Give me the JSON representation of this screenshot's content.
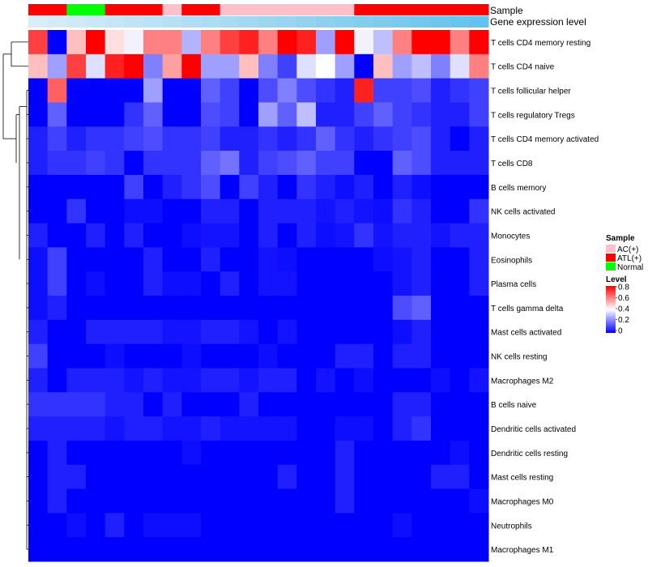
{
  "chart_data": {
    "type": "heatmap",
    "title": "",
    "annotation_labels": {
      "sample": "Sample",
      "expression": "Gene expression level"
    },
    "columns": 24,
    "sample_groups": [
      "ATL(+)",
      "ATL(+)",
      "Normal",
      "Normal",
      "ATL(+)",
      "ATL(+)",
      "ATL(+)",
      "AC(+)",
      "ATL(+)",
      "ATL(+)",
      "AC(+)",
      "AC(+)",
      "AC(+)",
      "AC(+)",
      "AC(+)",
      "AC(+)",
      "AC(+)",
      "ATL(+)",
      "ATL(+)",
      "ATL(+)",
      "ATL(+)",
      "ATL(+)",
      "ATL(+)",
      "ATL(+)"
    ],
    "expression_level": [
      0.02,
      0.06,
      0.1,
      0.14,
      0.18,
      0.22,
      0.26,
      0.3,
      0.34,
      0.38,
      0.42,
      0.46,
      0.5,
      0.54,
      0.58,
      0.62,
      0.66,
      0.7,
      0.74,
      0.78,
      0.82,
      0.86,
      0.9,
      0.94
    ],
    "rows": [
      "T cells CD4 memory resting",
      "T cells CD4 naive",
      "T cells follicular helper",
      "T cells regulatory  Tregs",
      "T cells CD4 memory activated",
      "T cells CD8",
      "B cells memory",
      "NK cells activated",
      "Monocytes",
      "Eosinophils",
      "Plasma cells",
      "T cells gamma delta",
      "Mast cells activated",
      "NK cells resting",
      "Macrophages M2",
      "B cells naive",
      "Dendritic cells activated",
      "Dendritic cells resting",
      "Mast cells resting",
      "Macrophages M0",
      "Neutrophils",
      "Macrophages M1"
    ],
    "values": [
      [
        0.7,
        0.0,
        0.5,
        0.85,
        0.45,
        0.38,
        0.6,
        0.6,
        0.28,
        0.6,
        0.7,
        0.75,
        0.6,
        0.85,
        0.75,
        0.25,
        0.85,
        0.38,
        0.3,
        0.6,
        0.85,
        0.9,
        0.6,
        0.85
      ],
      [
        0.5,
        0.25,
        0.7,
        0.35,
        0.75,
        0.85,
        0.2,
        0.55,
        0.85,
        0.25,
        0.25,
        0.5,
        0.2,
        0.1,
        0.35,
        0.4,
        0.25,
        0.0,
        0.5,
        0.25,
        0.3,
        0.2,
        0.35,
        0.6
      ],
      [
        0.0,
        0.65,
        0.0,
        0.0,
        0.0,
        0.0,
        0.25,
        0.0,
        0.0,
        0.15,
        0.1,
        0.0,
        0.12,
        0.2,
        0.12,
        0.08,
        0.05,
        0.75,
        0.1,
        0.1,
        0.12,
        0.05,
        0.08,
        0.1
      ],
      [
        0.0,
        0.15,
        0.0,
        0.0,
        0.0,
        0.08,
        0.15,
        0.0,
        0.0,
        0.12,
        0.1,
        0.0,
        0.25,
        0.15,
        0.3,
        0.05,
        0.05,
        0.1,
        0.15,
        0.1,
        0.08,
        0.05,
        0.05,
        0.1
      ],
      [
        0.05,
        0.1,
        0.05,
        0.08,
        0.08,
        0.1,
        0.12,
        0.08,
        0.08,
        0.1,
        0.05,
        0.05,
        0.08,
        0.05,
        0.08,
        0.15,
        0.08,
        0.05,
        0.08,
        0.1,
        0.12,
        0.05,
        0.0,
        0.05
      ],
      [
        0.05,
        0.08,
        0.08,
        0.1,
        0.08,
        0.0,
        0.08,
        0.08,
        0.08,
        0.15,
        0.18,
        0.05,
        0.1,
        0.12,
        0.15,
        0.1,
        0.1,
        0.0,
        0.0,
        0.15,
        0.12,
        0.05,
        0.05,
        0.05
      ],
      [
        0.0,
        0.0,
        0.0,
        0.0,
        0.0,
        0.1,
        0.0,
        0.05,
        0.08,
        0.12,
        0.0,
        0.1,
        0.05,
        0.0,
        0.08,
        0.05,
        0.02,
        0.05,
        0.0,
        0.05,
        0.02,
        0.0,
        0.0,
        0.0
      ],
      [
        0.0,
        0.0,
        0.08,
        0.0,
        0.0,
        0.02,
        0.02,
        0.0,
        0.0,
        0.05,
        0.05,
        0.0,
        0.05,
        0.05,
        0.05,
        0.03,
        0.05,
        0.03,
        0.02,
        0.08,
        0.05,
        0.0,
        0.0,
        0.08
      ],
      [
        0.05,
        0.0,
        0.0,
        0.05,
        0.0,
        0.05,
        0.0,
        0.0,
        0.02,
        0.03,
        0.03,
        0.0,
        0.05,
        0.0,
        0.05,
        0.02,
        0.03,
        0.08,
        0.03,
        0.05,
        0.05,
        0.03,
        0.05,
        0.05
      ],
      [
        0.02,
        0.1,
        0.0,
        0.0,
        0.0,
        0.0,
        0.05,
        0.0,
        0.0,
        0.05,
        0.0,
        0.0,
        0.03,
        0.02,
        0.0,
        0.0,
        0.0,
        0.0,
        0.02,
        0.03,
        0.05,
        0.0,
        0.0,
        0.05
      ],
      [
        0.02,
        0.1,
        0.0,
        0.02,
        0.0,
        0.0,
        0.05,
        0.02,
        0.02,
        0.0,
        0.05,
        0.0,
        0.03,
        0.03,
        0.0,
        0.0,
        0.0,
        0.0,
        0.0,
        0.03,
        0.05,
        0.0,
        0.0,
        0.05
      ],
      [
        0.02,
        0.05,
        0.0,
        0.0,
        0.0,
        0.0,
        0.0,
        0.0,
        0.0,
        0.0,
        0.0,
        0.0,
        0.0,
        0.0,
        0.0,
        0.0,
        0.0,
        0.0,
        0.0,
        0.12,
        0.15,
        0.0,
        0.0,
        0.0
      ],
      [
        0.05,
        0.0,
        0.0,
        0.05,
        0.05,
        0.05,
        0.05,
        0.03,
        0.03,
        0.05,
        0.05,
        0.03,
        0.0,
        0.03,
        0.0,
        0.0,
        0.0,
        0.0,
        0.0,
        0.02,
        0.05,
        0.0,
        0.0,
        0.0
      ],
      [
        0.1,
        0.0,
        0.0,
        0.0,
        0.02,
        0.0,
        0.0,
        0.0,
        0.02,
        0.0,
        0.0,
        0.0,
        0.02,
        0.0,
        0.0,
        0.0,
        0.05,
        0.05,
        0.0,
        0.05,
        0.05,
        0.0,
        0.0,
        0.0
      ],
      [
        0.05,
        0.0,
        0.05,
        0.05,
        0.05,
        0.03,
        0.05,
        0.03,
        0.03,
        0.05,
        0.05,
        0.03,
        0.05,
        0.05,
        0.0,
        0.03,
        0.0,
        0.02,
        0.0,
        0.0,
        0.0,
        0.02,
        0.0,
        0.03
      ],
      [
        0.08,
        0.08,
        0.08,
        0.08,
        0.05,
        0.05,
        0.0,
        0.05,
        0.0,
        0.0,
        0.0,
        0.05,
        0.0,
        0.0,
        0.0,
        0.0,
        0.0,
        0.0,
        0.0,
        0.05,
        0.05,
        0.0,
        0.0,
        0.0
      ],
      [
        0.05,
        0.05,
        0.05,
        0.05,
        0.03,
        0.05,
        0.05,
        0.03,
        0.03,
        0.05,
        0.03,
        0.03,
        0.03,
        0.03,
        0.0,
        0.0,
        0.02,
        0.02,
        0.0,
        0.05,
        0.08,
        0.0,
        0.0,
        0.0
      ],
      [
        0.0,
        0.05,
        0.0,
        0.0,
        0.0,
        0.0,
        0.0,
        0.0,
        0.02,
        0.0,
        0.0,
        0.0,
        0.0,
        0.0,
        0.0,
        0.0,
        0.05,
        0.0,
        0.0,
        0.0,
        0.0,
        0.0,
        0.02,
        0.0
      ],
      [
        0.0,
        0.05,
        0.05,
        0.0,
        0.0,
        0.0,
        0.0,
        0.0,
        0.0,
        0.0,
        0.0,
        0.0,
        0.0,
        0.05,
        0.0,
        0.0,
        0.05,
        0.0,
        0.0,
        0.0,
        0.0,
        0.05,
        0.05,
        0.0
      ],
      [
        0.0,
        0.05,
        0.0,
        0.0,
        0.0,
        0.0,
        0.0,
        0.0,
        0.0,
        0.0,
        0.0,
        0.0,
        0.0,
        0.0,
        0.0,
        0.0,
        0.05,
        0.0,
        0.0,
        0.0,
        0.0,
        0.0,
        0.0,
        0.02
      ],
      [
        0.0,
        0.0,
        0.02,
        0.0,
        0.05,
        0.0,
        0.02,
        0.02,
        0.02,
        0.0,
        0.0,
        0.0,
        0.0,
        0.0,
        0.0,
        0.0,
        0.0,
        0.0,
        0.0,
        0.02,
        0.0,
        0.0,
        0.0,
        0.0
      ],
      [
        0.0,
        0.0,
        0.0,
        0.0,
        0.0,
        0.0,
        0.0,
        0.0,
        0.0,
        0.0,
        0.0,
        0.0,
        0.0,
        0.0,
        0.0,
        0.0,
        0.0,
        0.0,
        0.0,
        0.0,
        0.0,
        0.0,
        0.0,
        0.0
      ]
    ],
    "legend": {
      "sample_title": "Sample",
      "sample_entries": [
        {
          "label": "AC(+)",
          "color": "#ffc0cb"
        },
        {
          "label": "ATL(+)",
          "color": "#ff0000"
        },
        {
          "label": "Normal",
          "color": "#00ff00"
        }
      ],
      "level_title": "Level",
      "level_ticks": [
        "0.8",
        "0.6",
        "0.4",
        "0.2",
        "0"
      ],
      "level_range": [
        0,
        0.8
      ]
    },
    "colors": {
      "low": "#0000ff",
      "mid": "#ffffff",
      "high": "#ff0000",
      "expr_low": "#ddeef8",
      "expr_high": "#5bc0eb"
    }
  }
}
